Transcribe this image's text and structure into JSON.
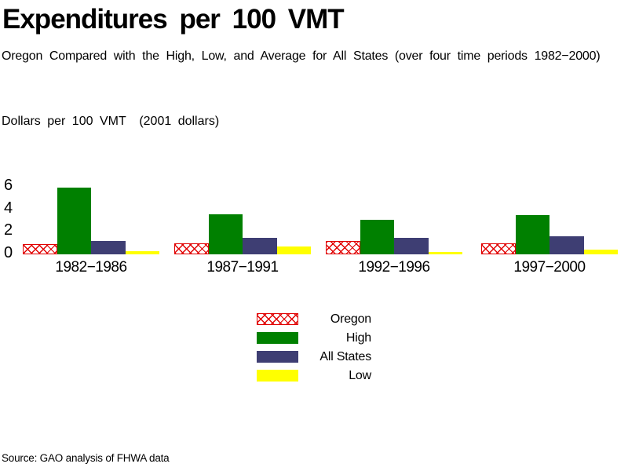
{
  "page": {
    "title": "Expenditures per 100 VMT",
    "subtitle": "Oregon Compared with the High, Low, and Average for All States (over four time periods 1982−2000)",
    "axis_note": "Dollars per 100 VMT  (2001 dollars)",
    "source": "Source: GAO analysis of FHWA data"
  },
  "colors": {
    "oregon_red": "#e10000",
    "high_green": "#008000",
    "all_states_blue": "#3e3e73",
    "low_yellow": "#ffff00",
    "text": "#000000",
    "background": "#ffffff"
  },
  "chart_data": {
    "type": "bar",
    "title": "Expenditures per 100 VMT",
    "subtitle": "Oregon Compared with the High, Low, and Average for All States (over four time periods 1982−2000)",
    "ylabel": "Dollars per 100 VMT (2001 dollars)",
    "xlabel": "",
    "categories": [
      "1982−1986",
      "1987−1991",
      "1992−1996",
      "1997−2000"
    ],
    "series": [
      {
        "name": "Oregon",
        "pattern": "crosshatch",
        "color": "#e10000",
        "values": [
          0.9,
          1.0,
          1.2,
          1.0
        ]
      },
      {
        "name": "High",
        "pattern": "solid",
        "color": "#008000",
        "values": [
          6.0,
          3.6,
          3.1,
          3.5
        ]
      },
      {
        "name": "All States",
        "pattern": "solid",
        "color": "#3e3e73",
        "values": [
          1.2,
          1.5,
          1.5,
          1.6
        ]
      },
      {
        "name": "Low",
        "pattern": "solid",
        "color": "#ffff00",
        "values": [
          0.3,
          0.7,
          0.2,
          0.4
        ]
      }
    ],
    "yticks": [
      0,
      2,
      4,
      6
    ],
    "ylim": [
      0,
      6
    ],
    "grid": false,
    "axis_lines": false,
    "legend_position": "below-chart-center",
    "legend": [
      "Oregon",
      "High",
      "All States",
      "Low"
    ]
  }
}
